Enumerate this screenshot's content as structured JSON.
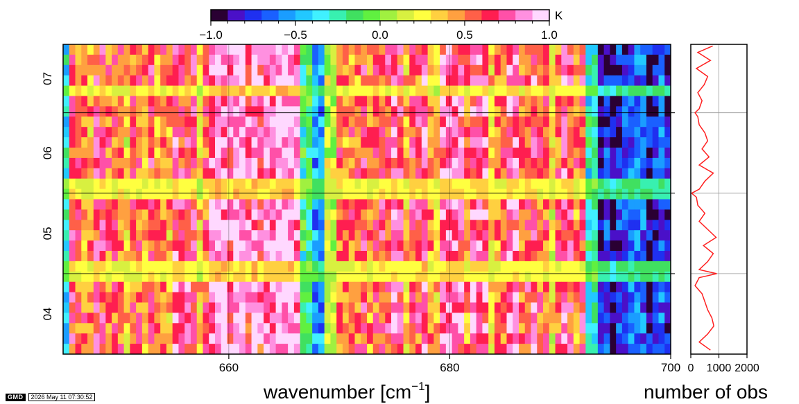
{
  "chart_data": [
    {
      "type": "heatmap",
      "x_ticks": [
        "660",
        "680",
        "700"
      ],
      "x_tick_values": [
        660,
        680,
        700
      ],
      "xlim": [
        645,
        700
      ],
      "y_ticks": [
        "04",
        "05",
        "06",
        "07"
      ],
      "y_boundaries": [
        4.5,
        5.5,
        6.5
      ],
      "ylim": [
        3.5,
        7.35
      ],
      "xlabel": "wavenumber [cm",
      "xlabel_sup": "−1",
      "xlabel_close": "]",
      "value_range": [
        -1.0,
        1.0
      ],
      "value_unit": "K",
      "colorbar_ticks": [
        "−1.0",
        "−0.5",
        "0.0",
        "0.5",
        "1.0"
      ],
      "colorbar_tick_values": [
        -1.0,
        -0.5,
        0.0,
        0.5,
        1.0
      ],
      "colorbar_levels": [
        -1.0,
        -0.9,
        -0.8,
        -0.7,
        -0.6,
        -0.5,
        -0.4,
        -0.3,
        -0.2,
        -0.1,
        0.0,
        0.1,
        0.2,
        0.3,
        0.4,
        0.5,
        0.6,
        0.7,
        0.8,
        0.9,
        1.0
      ],
      "colorbar_colors": [
        "#2a0033",
        "#4a10c8",
        "#1f30f0",
        "#1a60ff",
        "#1a9dff",
        "#22c8ff",
        "#40f0ff",
        "#38f0b0",
        "#40e060",
        "#60f040",
        "#a0f040",
        "#d8f040",
        "#ffff40",
        "#ffd040",
        "#ffa040",
        "#ff6048",
        "#ff1e50",
        "#ff50a8",
        "#ff90e0",
        "#ffd8ff"
      ],
      "rows": 30,
      "columns": 100,
      "grid": true
    },
    {
      "type": "line",
      "xlabel": "number of obs",
      "x_ticks": [
        "0",
        "1000",
        "2000"
      ],
      "x_tick_values": [
        0,
        1000,
        2000
      ],
      "xlim": [
        0,
        2000
      ],
      "ylim": [
        3.5,
        7.35
      ],
      "grid": true,
      "line_color": "#ff2020",
      "y": [
        3.55,
        3.65,
        3.75,
        3.85,
        3.95,
        4.05,
        4.15,
        4.25,
        4.35,
        4.45,
        4.5,
        4.55,
        4.65,
        4.75,
        4.85,
        4.95,
        5.05,
        5.15,
        5.25,
        5.35,
        5.45,
        5.5,
        5.55,
        5.65,
        5.75,
        5.85,
        5.95,
        6.05,
        6.15,
        6.25,
        6.35,
        6.45,
        6.5,
        6.55,
        6.65,
        6.75,
        6.85,
        6.95,
        7.05,
        7.15,
        7.25,
        7.33
      ],
      "x": [
        700,
        300,
        600,
        820,
        750,
        600,
        500,
        400,
        150,
        300,
        920,
        300,
        600,
        800,
        450,
        900,
        600,
        300,
        500,
        250,
        200,
        30,
        300,
        500,
        800,
        300,
        650,
        400,
        600,
        500,
        300,
        250,
        150,
        300,
        400,
        250,
        480,
        600,
        200,
        700,
        250,
        780
      ]
    }
  ],
  "timestamp": {
    "logo": "GMD",
    "date": "2026 May 11 07:30:52"
  }
}
